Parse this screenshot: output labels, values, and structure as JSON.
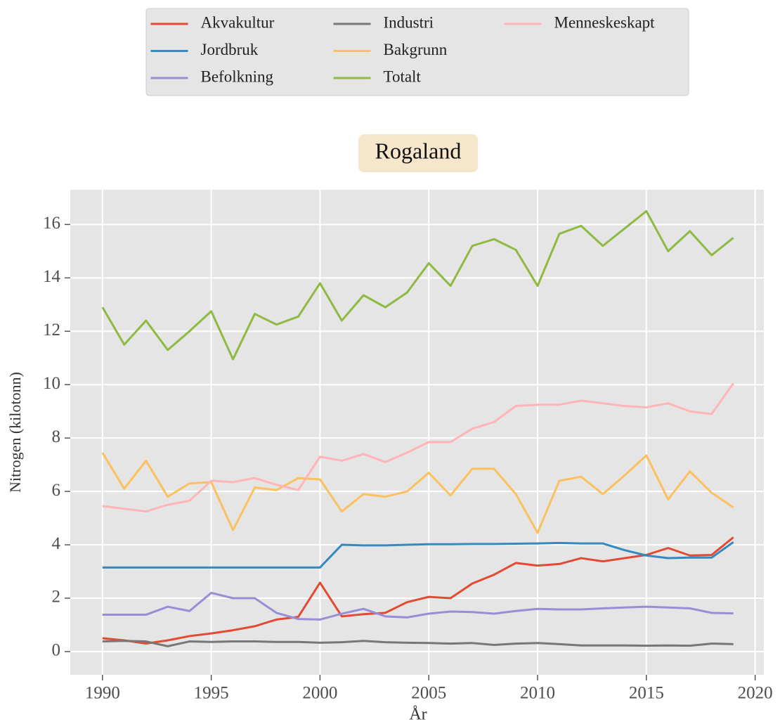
{
  "chart_data": {
    "type": "line",
    "title": "Rogaland",
    "xlabel": "År",
    "ylabel": "Nitrogen (kilotonn)",
    "x": [
      1990,
      1991,
      1992,
      1993,
      1994,
      1995,
      1996,
      1997,
      1998,
      1999,
      2000,
      2001,
      2002,
      2003,
      2004,
      2005,
      2006,
      2007,
      2008,
      2009,
      2010,
      2011,
      2012,
      2013,
      2014,
      2015,
      2016,
      2017,
      2018,
      2019
    ],
    "series": [
      {
        "name": "Akvakultur",
        "color": "#E24A33",
        "values": [
          0.5,
          0.42,
          0.3,
          0.42,
          0.58,
          0.68,
          0.8,
          0.95,
          1.2,
          1.3,
          2.58,
          1.32,
          1.4,
          1.45,
          1.85,
          2.05,
          2.0,
          2.55,
          2.88,
          3.32,
          3.22,
          3.28,
          3.5,
          3.38,
          3.5,
          3.62,
          3.88,
          3.6,
          3.62,
          4.28
        ]
      },
      {
        "name": "Jordbruk",
        "color": "#348ABD",
        "values": [
          3.15,
          3.15,
          3.15,
          3.15,
          3.15,
          3.15,
          3.15,
          3.15,
          3.15,
          3.15,
          3.15,
          4.0,
          3.98,
          3.98,
          4.0,
          4.02,
          4.02,
          4.03,
          4.03,
          4.04,
          4.05,
          4.07,
          4.05,
          4.05,
          3.8,
          3.6,
          3.5,
          3.52,
          3.52,
          4.1
        ]
      },
      {
        "name": "Befolkning",
        "color": "#988ED5",
        "values": [
          1.38,
          1.38,
          1.38,
          1.68,
          1.52,
          2.2,
          2.0,
          2.0,
          1.45,
          1.22,
          1.2,
          1.42,
          1.6,
          1.32,
          1.28,
          1.42,
          1.5,
          1.48,
          1.42,
          1.52,
          1.6,
          1.58,
          1.58,
          1.62,
          1.65,
          1.68,
          1.65,
          1.62,
          1.45,
          1.43
        ]
      },
      {
        "name": "Industri",
        "color": "#777777",
        "values": [
          0.38,
          0.4,
          0.38,
          0.2,
          0.38,
          0.36,
          0.38,
          0.38,
          0.36,
          0.36,
          0.33,
          0.35,
          0.4,
          0.35,
          0.33,
          0.32,
          0.3,
          0.32,
          0.25,
          0.3,
          0.32,
          0.28,
          0.23,
          0.23,
          0.23,
          0.22,
          0.23,
          0.22,
          0.3,
          0.28
        ]
      },
      {
        "name": "Bakgrunn",
        "color": "#FBC15E",
        "values": [
          7.45,
          6.1,
          7.15,
          5.8,
          6.3,
          6.35,
          4.55,
          6.15,
          6.05,
          6.5,
          6.45,
          5.25,
          5.9,
          5.8,
          6.0,
          6.7,
          5.85,
          6.85,
          6.85,
          5.9,
          4.45,
          6.4,
          6.55,
          5.9,
          6.6,
          7.35,
          5.7,
          6.75,
          5.95,
          5.4
        ]
      },
      {
        "name": "Totalt",
        "color": "#8EBA42",
        "values": [
          12.9,
          11.5,
          12.4,
          11.3,
          12.0,
          12.75,
          10.95,
          12.65,
          12.25,
          12.55,
          13.8,
          12.4,
          13.35,
          12.9,
          13.45,
          14.55,
          13.7,
          15.2,
          15.45,
          15.05,
          13.7,
          15.65,
          15.95,
          15.2,
          15.85,
          16.5,
          15.0,
          15.75,
          14.85,
          15.5
        ]
      },
      {
        "name": "Menneskeskapt",
        "color": "#FFB5B8",
        "values": [
          5.45,
          5.35,
          5.25,
          5.5,
          5.65,
          6.4,
          6.35,
          6.5,
          6.25,
          6.05,
          7.3,
          7.15,
          7.4,
          7.1,
          7.45,
          7.85,
          7.85,
          8.35,
          8.6,
          9.2,
          9.25,
          9.25,
          9.4,
          9.3,
          9.2,
          9.15,
          9.3,
          9.0,
          8.9,
          10.05
        ]
      }
    ],
    "xlim": [
      1988.52,
      2020.4
    ],
    "xticks": [
      1990,
      1995,
      2000,
      2005,
      2010,
      2015,
      2020
    ],
    "ylim": [
      -0.87,
      17.3
    ],
    "yticks": [
      0,
      2,
      4,
      6,
      8,
      10,
      12,
      14,
      16
    ],
    "grid": true,
    "legend": "upper center",
    "legend_columns": 3
  }
}
